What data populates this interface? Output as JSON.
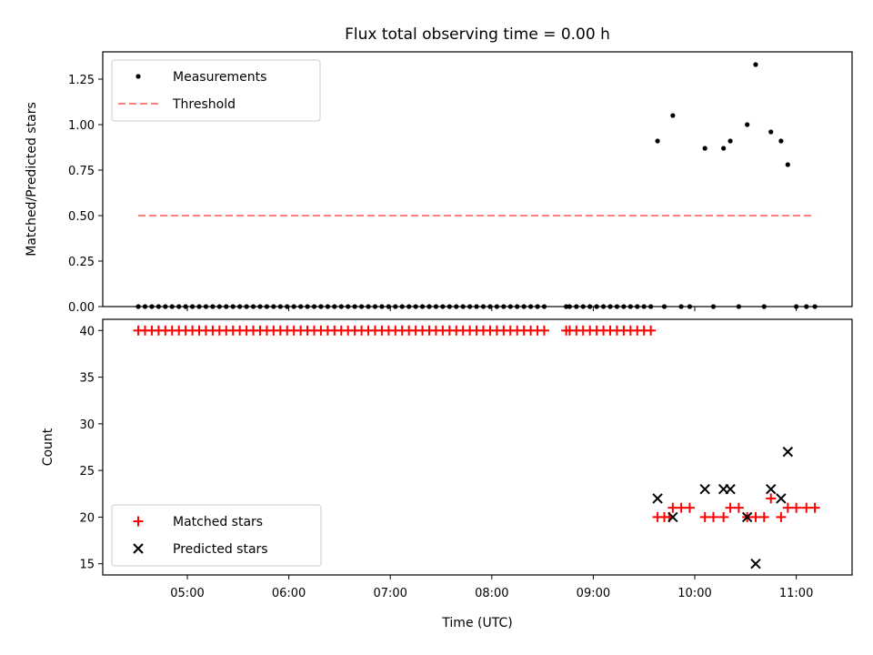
{
  "figure": {
    "title": "Flux total observing time = 0.00 h"
  },
  "chart_data": [
    {
      "type": "scatter",
      "ylabel": "Matched/Predicted stars",
      "xlabel": "",
      "xlim": [
        "04:10",
        "11:33"
      ],
      "ylim": [
        0,
        1.4
      ],
      "yticks": [
        {
          "v": 0,
          "label": "0.00"
        },
        {
          "v": 0.25,
          "label": "0.25"
        },
        {
          "v": 0.5,
          "label": "0.50"
        },
        {
          "v": 0.75,
          "label": "0.75"
        },
        {
          "v": 1.0,
          "label": "1.00"
        },
        {
          "v": 1.25,
          "label": "1.25"
        }
      ],
      "xticks": [
        "05:00",
        "06:00",
        "07:00",
        "08:00",
        "09:00",
        "10:00",
        "11:00"
      ],
      "grid": false,
      "legend": {
        "placement": "top-left",
        "entries": [
          "Measurements",
          "Threshold"
        ]
      },
      "series": [
        {
          "name": "Measurements",
          "marker": "dot",
          "color": "#000000",
          "points": [
            [
              "04:31",
              0
            ],
            [
              "04:35",
              0
            ],
            [
              "04:39",
              0
            ],
            [
              "04:43",
              0
            ],
            [
              "04:47",
              0
            ],
            [
              "04:51",
              0
            ],
            [
              "04:55",
              0
            ],
            [
              "04:59",
              0
            ],
            [
              "05:03",
              0
            ],
            [
              "05:07",
              0
            ],
            [
              "05:11",
              0
            ],
            [
              "05:15",
              0
            ],
            [
              "05:19",
              0
            ],
            [
              "05:23",
              0
            ],
            [
              "05:27",
              0
            ],
            [
              "05:31",
              0
            ],
            [
              "05:35",
              0
            ],
            [
              "05:39",
              0
            ],
            [
              "05:43",
              0
            ],
            [
              "05:47",
              0
            ],
            [
              "05:51",
              0
            ],
            [
              "05:55",
              0
            ],
            [
              "05:59",
              0
            ],
            [
              "06:03",
              0
            ],
            [
              "06:07",
              0
            ],
            [
              "06:11",
              0
            ],
            [
              "06:15",
              0
            ],
            [
              "06:19",
              0
            ],
            [
              "06:23",
              0
            ],
            [
              "06:27",
              0
            ],
            [
              "06:31",
              0
            ],
            [
              "06:35",
              0
            ],
            [
              "06:39",
              0
            ],
            [
              "06:43",
              0
            ],
            [
              "06:47",
              0
            ],
            [
              "06:51",
              0
            ],
            [
              "06:55",
              0
            ],
            [
              "06:59",
              0
            ],
            [
              "07:03",
              0
            ],
            [
              "07:07",
              0
            ],
            [
              "07:11",
              0
            ],
            [
              "07:15",
              0
            ],
            [
              "07:19",
              0
            ],
            [
              "07:23",
              0
            ],
            [
              "07:27",
              0
            ],
            [
              "07:31",
              0
            ],
            [
              "07:35",
              0
            ],
            [
              "07:39",
              0
            ],
            [
              "07:43",
              0
            ],
            [
              "07:47",
              0
            ],
            [
              "07:51",
              0
            ],
            [
              "07:55",
              0
            ],
            [
              "07:59",
              0
            ],
            [
              "08:03",
              0
            ],
            [
              "08:07",
              0
            ],
            [
              "08:11",
              0
            ],
            [
              "08:15",
              0
            ],
            [
              "08:19",
              0
            ],
            [
              "08:23",
              0
            ],
            [
              "08:27",
              0
            ],
            [
              "08:31",
              0
            ],
            [
              "08:44",
              0
            ],
            [
              "08:46",
              0
            ],
            [
              "08:50",
              0
            ],
            [
              "08:54",
              0
            ],
            [
              "08:58",
              0
            ],
            [
              "09:02",
              0
            ],
            [
              "09:06",
              0
            ],
            [
              "09:10",
              0
            ],
            [
              "09:14",
              0
            ],
            [
              "09:18",
              0
            ],
            [
              "09:22",
              0
            ],
            [
              "09:26",
              0
            ],
            [
              "09:30",
              0
            ],
            [
              "09:34",
              0
            ],
            [
              "09:38",
              0.91
            ],
            [
              "09:42",
              0
            ],
            [
              "09:47",
              1.05
            ],
            [
              "09:52",
              0
            ],
            [
              "09:57",
              0
            ],
            [
              "10:06",
              0.87
            ],
            [
              "10:11",
              0
            ],
            [
              "10:17",
              0.87
            ],
            [
              "10:21",
              0.91
            ],
            [
              "10:26",
              0
            ],
            [
              "10:31",
              1.0
            ],
            [
              "10:36",
              1.33
            ],
            [
              "10:41",
              0
            ],
            [
              "10:45",
              0.96
            ],
            [
              "10:51",
              0.91
            ],
            [
              "10:55",
              0.78
            ],
            [
              "11:00",
              0
            ],
            [
              "11:06",
              0
            ],
            [
              "11:11",
              0
            ]
          ]
        },
        {
          "name": "Threshold",
          "marker": "dashed-line",
          "color": "#ff7f7f",
          "points": [
            [
              "04:31",
              0.5
            ],
            [
              "11:11",
              0.5
            ]
          ]
        }
      ]
    },
    {
      "type": "scatter",
      "ylabel": "Count",
      "xlabel": "Time (UTC)",
      "xlim": [
        "04:10",
        "11:33"
      ],
      "ylim": [
        13.8,
        41.2
      ],
      "yticks": [
        {
          "v": 15,
          "label": "15"
        },
        {
          "v": 20,
          "label": "20"
        },
        {
          "v": 25,
          "label": "25"
        },
        {
          "v": 30,
          "label": "30"
        },
        {
          "v": 35,
          "label": "35"
        },
        {
          "v": 40,
          "label": "40"
        }
      ],
      "xticks": [
        "05:00",
        "06:00",
        "07:00",
        "08:00",
        "09:00",
        "10:00",
        "11:00"
      ],
      "grid": false,
      "legend": {
        "placement": "bottom-left",
        "entries": [
          "Matched stars",
          "Predicted stars"
        ]
      },
      "series": [
        {
          "name": "Matched stars",
          "marker": "plus",
          "color": "#ff0000",
          "points": [
            [
              "04:31",
              40
            ],
            [
              "04:35",
              40
            ],
            [
              "04:39",
              40
            ],
            [
              "04:43",
              40
            ],
            [
              "04:47",
              40
            ],
            [
              "04:51",
              40
            ],
            [
              "04:55",
              40
            ],
            [
              "04:59",
              40
            ],
            [
              "05:03",
              40
            ],
            [
              "05:07",
              40
            ],
            [
              "05:11",
              40
            ],
            [
              "05:15",
              40
            ],
            [
              "05:19",
              40
            ],
            [
              "05:23",
              40
            ],
            [
              "05:27",
              40
            ],
            [
              "05:31",
              40
            ],
            [
              "05:35",
              40
            ],
            [
              "05:39",
              40
            ],
            [
              "05:43",
              40
            ],
            [
              "05:47",
              40
            ],
            [
              "05:51",
              40
            ],
            [
              "05:55",
              40
            ],
            [
              "05:59",
              40
            ],
            [
              "06:03",
              40
            ],
            [
              "06:07",
              40
            ],
            [
              "06:11",
              40
            ],
            [
              "06:15",
              40
            ],
            [
              "06:19",
              40
            ],
            [
              "06:23",
              40
            ],
            [
              "06:27",
              40
            ],
            [
              "06:31",
              40
            ],
            [
              "06:35",
              40
            ],
            [
              "06:39",
              40
            ],
            [
              "06:43",
              40
            ],
            [
              "06:47",
              40
            ],
            [
              "06:51",
              40
            ],
            [
              "06:55",
              40
            ],
            [
              "06:59",
              40
            ],
            [
              "07:03",
              40
            ],
            [
              "07:07",
              40
            ],
            [
              "07:11",
              40
            ],
            [
              "07:15",
              40
            ],
            [
              "07:19",
              40
            ],
            [
              "07:23",
              40
            ],
            [
              "07:27",
              40
            ],
            [
              "07:31",
              40
            ],
            [
              "07:35",
              40
            ],
            [
              "07:39",
              40
            ],
            [
              "07:43",
              40
            ],
            [
              "07:47",
              40
            ],
            [
              "07:51",
              40
            ],
            [
              "07:55",
              40
            ],
            [
              "07:59",
              40
            ],
            [
              "08:03",
              40
            ],
            [
              "08:07",
              40
            ],
            [
              "08:11",
              40
            ],
            [
              "08:15",
              40
            ],
            [
              "08:19",
              40
            ],
            [
              "08:23",
              40
            ],
            [
              "08:27",
              40
            ],
            [
              "08:31",
              40
            ],
            [
              "08:44",
              40
            ],
            [
              "08:46",
              40
            ],
            [
              "08:50",
              40
            ],
            [
              "08:54",
              40
            ],
            [
              "08:58",
              40
            ],
            [
              "09:02",
              40
            ],
            [
              "09:06",
              40
            ],
            [
              "09:10",
              40
            ],
            [
              "09:14",
              40
            ],
            [
              "09:18",
              40
            ],
            [
              "09:22",
              40
            ],
            [
              "09:26",
              40
            ],
            [
              "09:30",
              40
            ],
            [
              "09:34",
              40
            ],
            [
              "09:38",
              20
            ],
            [
              "09:42",
              20
            ],
            [
              "09:45",
              20
            ],
            [
              "09:47",
              21
            ],
            [
              "09:52",
              21
            ],
            [
              "09:57",
              21
            ],
            [
              "10:06",
              20
            ],
            [
              "10:11",
              20
            ],
            [
              "10:17",
              20
            ],
            [
              "10:21",
              21
            ],
            [
              "10:26",
              21
            ],
            [
              "10:31",
              20
            ],
            [
              "10:36",
              20
            ],
            [
              "10:41",
              20
            ],
            [
              "10:45",
              22
            ],
            [
              "10:51",
              20
            ],
            [
              "10:55",
              21
            ],
            [
              "11:00",
              21
            ],
            [
              "11:06",
              21
            ],
            [
              "11:11",
              21
            ]
          ]
        },
        {
          "name": "Predicted stars",
          "marker": "x",
          "color": "#000000",
          "points": [
            [
              "09:38",
              22
            ],
            [
              "09:47",
              20
            ],
            [
              "10:06",
              23
            ],
            [
              "10:17",
              23
            ],
            [
              "10:21",
              23
            ],
            [
              "10:31",
              20
            ],
            [
              "10:36",
              15
            ],
            [
              "10:45",
              23
            ],
            [
              "10:51",
              22
            ],
            [
              "10:55",
              27
            ]
          ]
        }
      ]
    }
  ]
}
